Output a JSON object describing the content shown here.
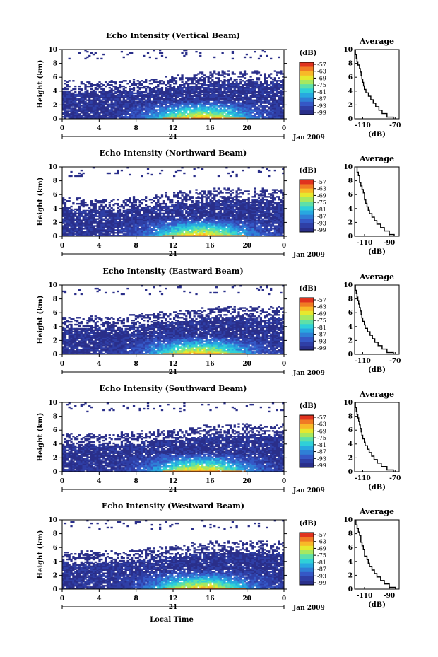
{
  "figure": {
    "x_axis_label": "Local Time",
    "y_axis_label": "Height (km)",
    "date_label": "Jan 2009",
    "day_label": "21",
    "colorbar_unit": "(dB)",
    "average_title": "Average",
    "average_xlabel": "(dB)"
  },
  "chart_data": [
    {
      "type": "heatmap",
      "title": "Echo Intensity (Vertical Beam)",
      "xlabel": "Local Time",
      "ylabel": "Height (km)",
      "x_ticks": [
        "0",
        "4",
        "8",
        "12",
        "16",
        "20",
        "0"
      ],
      "y_ticks": [
        "0",
        "2",
        "4",
        "6",
        "8",
        "10"
      ],
      "xlim": [
        0,
        24
      ],
      "ylim": [
        0,
        10
      ],
      "colorbar_ticks": [
        "-57",
        "-63",
        "-69",
        "-75",
        "-81",
        "-87",
        "-93",
        "-99"
      ],
      "profile": {
        "title": "Average",
        "xlabel": "(dB)",
        "x_ticks": [
          "-110",
          "-70"
        ],
        "xlim": [
          -120,
          -65
        ],
        "heights": [
          0,
          0.5,
          1,
          1.5,
          2,
          2.5,
          3,
          3.5,
          4,
          4.5,
          5,
          5.5,
          6,
          6.5,
          7,
          7.5,
          8,
          8.5,
          9,
          9.5,
          10
        ],
        "values": [
          -72,
          -80,
          -86,
          -90,
          -94,
          -97,
          -100,
          -103,
          -106,
          -108,
          -109,
          -110,
          -111,
          -112,
          -113,
          -114,
          -116,
          -117,
          -118,
          -119,
          -119
        ]
      }
    },
    {
      "type": "heatmap",
      "title": "Echo Intensity (Northward Beam)",
      "xlabel": "Local Time",
      "ylabel": "Height (km)",
      "x_ticks": [
        "0",
        "4",
        "8",
        "12",
        "16",
        "20",
        "0"
      ],
      "y_ticks": [
        "0",
        "2",
        "4",
        "6",
        "8",
        "10"
      ],
      "xlim": [
        0,
        24
      ],
      "ylim": [
        0,
        10
      ],
      "colorbar_ticks": [
        "-57",
        "-63",
        "-69",
        "-75",
        "-81",
        "-87",
        "-93",
        "-99"
      ],
      "profile": {
        "title": "Average",
        "xlabel": "(dB)",
        "x_ticks": [
          "-110",
          "-90"
        ],
        "xlim": [
          -118,
          -82
        ],
        "heights": [
          0,
          0.5,
          1,
          1.5,
          2,
          2.5,
          3,
          3.5,
          4,
          4.5,
          5,
          5.5,
          6,
          6.5,
          7,
          7.5,
          8,
          8.5,
          9,
          9.5,
          10
        ],
        "values": [
          -86,
          -90,
          -94,
          -97,
          -100,
          -102,
          -104,
          -106,
          -107,
          -108,
          -109,
          -110,
          -110,
          -111,
          -112,
          -113,
          -114,
          -114,
          -115,
          -116,
          -116
        ]
      }
    },
    {
      "type": "heatmap",
      "title": "Echo Intensity (Eastward Beam)",
      "xlabel": "Local Time",
      "ylabel": "Height (km)",
      "x_ticks": [
        "0",
        "4",
        "8",
        "12",
        "16",
        "20",
        "0"
      ],
      "y_ticks": [
        "0",
        "2",
        "4",
        "6",
        "8",
        "10"
      ],
      "xlim": [
        0,
        24
      ],
      "ylim": [
        0,
        10
      ],
      "colorbar_ticks": [
        "-57",
        "-63",
        "-69",
        "-75",
        "-81",
        "-87",
        "-93",
        "-99"
      ],
      "profile": {
        "title": "Average",
        "xlabel": "(dB)",
        "x_ticks": [
          "-110",
          "-70"
        ],
        "xlim": [
          -120,
          -65
        ],
        "heights": [
          0,
          0.5,
          1,
          1.5,
          2,
          2.5,
          3,
          3.5,
          4,
          4.5,
          5,
          5.5,
          6,
          6.5,
          7,
          7.5,
          8,
          8.5,
          9,
          9.5,
          10
        ],
        "values": [
          -72,
          -80,
          -86,
          -91,
          -95,
          -98,
          -101,
          -104,
          -107,
          -108,
          -110,
          -111,
          -112,
          -113,
          -114,
          -115,
          -116,
          -117,
          -118,
          -119,
          -119
        ]
      }
    },
    {
      "type": "heatmap",
      "title": "Echo Intensity (Southward Beam)",
      "xlabel": "Local Time",
      "ylabel": "Height (km)",
      "x_ticks": [
        "0",
        "4",
        "8",
        "12",
        "16",
        "20",
        "0"
      ],
      "y_ticks": [
        "0",
        "2",
        "4",
        "6",
        "8",
        "10"
      ],
      "xlim": [
        0,
        24
      ],
      "ylim": [
        0,
        10
      ],
      "colorbar_ticks": [
        "-57",
        "-63",
        "-69",
        "-75",
        "-81",
        "-87",
        "-93",
        "-99"
      ],
      "profile": {
        "title": "Average",
        "xlabel": "(dB)",
        "x_ticks": [
          "-110",
          "-70"
        ],
        "xlim": [
          -120,
          -65
        ],
        "heights": [
          0,
          0.5,
          1,
          1.5,
          2,
          2.5,
          3,
          3.5,
          4,
          4.5,
          5,
          5.5,
          6,
          6.5,
          7,
          7.5,
          8,
          8.5,
          9,
          9.5,
          10
        ],
        "values": [
          -72,
          -80,
          -87,
          -92,
          -96,
          -99,
          -102,
          -104,
          -107,
          -108,
          -110,
          -111,
          -112,
          -113,
          -114,
          -115,
          -116,
          -117,
          -118,
          -119,
          -119
        ]
      }
    },
    {
      "type": "heatmap",
      "title": "Echo Intensity (Westward Beam)",
      "xlabel": "Local Time",
      "ylabel": "Height (km)",
      "x_ticks": [
        "0",
        "4",
        "8",
        "12",
        "16",
        "20",
        "0"
      ],
      "y_ticks": [
        "0",
        "2",
        "4",
        "6",
        "8",
        "10"
      ],
      "xlim": [
        0,
        24
      ],
      "ylim": [
        0,
        10
      ],
      "colorbar_ticks": [
        "-57",
        "-63",
        "-69",
        "-75",
        "-81",
        "-87",
        "-93",
        "-99"
      ],
      "profile": {
        "title": "Average",
        "xlabel": "(dB)",
        "x_ticks": [
          "-110",
          "-90"
        ],
        "xlim": [
          -118,
          -82
        ],
        "heights": [
          0,
          0.5,
          1,
          1.5,
          2,
          2.5,
          3,
          3.5,
          4,
          4.5,
          5,
          5.5,
          6,
          6.5,
          7,
          7.5,
          8,
          8.5,
          9,
          9.5,
          10
        ],
        "values": [
          -85,
          -90,
          -94,
          -97,
          -100,
          -102,
          -104,
          -106,
          -107,
          -108,
          -110,
          -110,
          -111,
          -112,
          -113,
          -113,
          -114,
          -115,
          -116,
          -117,
          -117
        ]
      }
    }
  ],
  "colorscale": [
    "#2a2f8a",
    "#2f3fa6",
    "#3558c6",
    "#2f7fd6",
    "#28a8e0",
    "#2fd0d8",
    "#5ee0a8",
    "#a6e860",
    "#e6e82e",
    "#f8b828",
    "#f07a24",
    "#e0321e"
  ]
}
